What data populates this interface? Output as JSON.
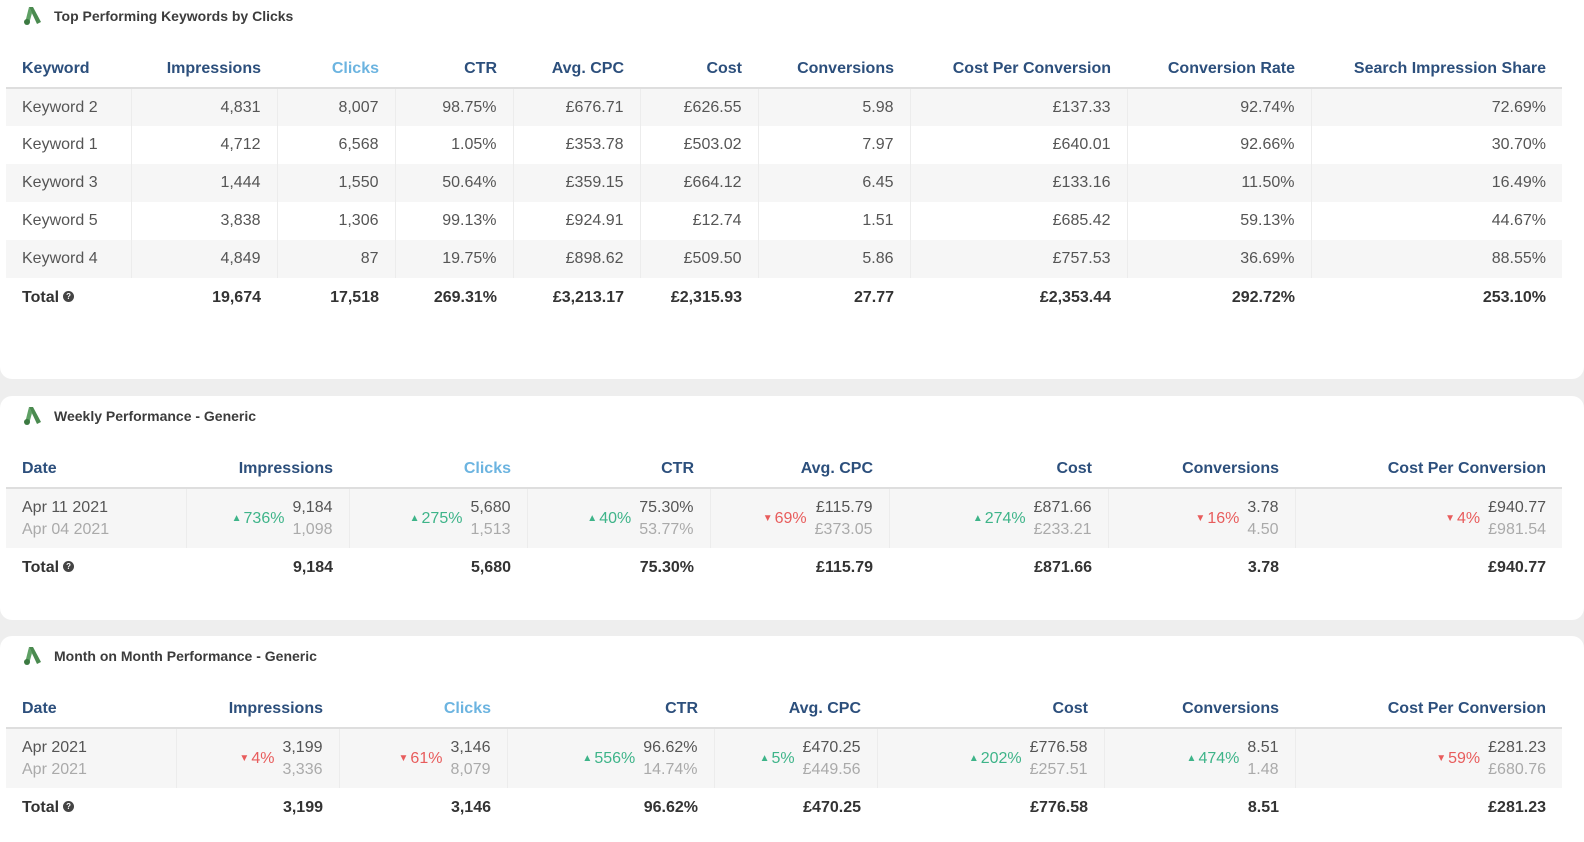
{
  "colors": {
    "header_text": "#2c4f7c",
    "sorted_header": "#6cb4e0",
    "up": "#3eb489",
    "down": "#e85c5c",
    "logo": "#4a8a4f"
  },
  "keywords": {
    "title": "Top Performing Keywords by Clicks",
    "icon": "google-ads-logo-icon",
    "headers": [
      "Keyword",
      "Impressions",
      "Clicks",
      "CTR",
      "Avg. CPC",
      "Cost",
      "Conversions",
      "Cost Per Conversion",
      "Conversion Rate",
      "Search Impression Share"
    ],
    "rows": [
      [
        "Keyword 2",
        "4,831",
        "8,007",
        "98.75%",
        "£676.71",
        "£626.55",
        "5.98",
        "£137.33",
        "92.74%",
        "72.69%"
      ],
      [
        "Keyword 1",
        "4,712",
        "6,568",
        "1.05%",
        "£353.78",
        "£503.02",
        "7.97",
        "£640.01",
        "92.66%",
        "30.70%"
      ],
      [
        "Keyword 3",
        "1,444",
        "1,550",
        "50.64%",
        "£359.15",
        "£664.12",
        "6.45",
        "£133.16",
        "11.50%",
        "16.49%"
      ],
      [
        "Keyword 5",
        "3,838",
        "1,306",
        "99.13%",
        "£924.91",
        "£12.74",
        "1.51",
        "£685.42",
        "59.13%",
        "44.67%"
      ],
      [
        "Keyword 4",
        "4,849",
        "87",
        "19.75%",
        "£898.62",
        "£509.50",
        "5.86",
        "£757.53",
        "36.69%",
        "88.55%"
      ]
    ],
    "total_label": "Total",
    "totals": [
      "19,674",
      "17,518",
      "269.31%",
      "£3,213.17",
      "£2,315.93",
      "27.77",
      "£2,353.44",
      "292.72%",
      "253.10%"
    ]
  },
  "weekly": {
    "title": "Weekly Performance - Generic",
    "headers": [
      "Date",
      "Impressions",
      "Clicks",
      "CTR",
      "Avg. CPC",
      "Cost",
      "Conversions",
      "Cost Per Conversion"
    ],
    "date_current": "Apr 11 2021",
    "date_previous": "Apr 04 2021",
    "cells": [
      {
        "delta": "736%",
        "dir": "up",
        "current": "9,184",
        "previous": "1,098"
      },
      {
        "delta": "275%",
        "dir": "up",
        "current": "5,680",
        "previous": "1,513"
      },
      {
        "delta": "40%",
        "dir": "up",
        "current": "75.30%",
        "previous": "53.77%"
      },
      {
        "delta": "69%",
        "dir": "down",
        "current": "£115.79",
        "previous": "£373.05"
      },
      {
        "delta": "274%",
        "dir": "up",
        "current": "£871.66",
        "previous": "£233.21"
      },
      {
        "delta": "16%",
        "dir": "down",
        "current": "3.78",
        "previous": "4.50"
      },
      {
        "delta": "4%",
        "dir": "down",
        "current": "£940.77",
        "previous": "£981.54"
      }
    ],
    "total_label": "Total",
    "totals": [
      "9,184",
      "5,680",
      "75.30%",
      "£115.79",
      "£871.66",
      "3.78",
      "£940.77"
    ]
  },
  "monthly": {
    "title": "Month on Month Performance - Generic",
    "headers": [
      "Date",
      "Impressions",
      "Clicks",
      "CTR",
      "Avg. CPC",
      "Cost",
      "Conversions",
      "Cost Per Conversion"
    ],
    "date_current": "Apr 2021",
    "date_previous": "Apr 2021",
    "cells": [
      {
        "delta": "4%",
        "dir": "down",
        "current": "3,199",
        "previous": "3,336"
      },
      {
        "delta": "61%",
        "dir": "down",
        "current": "3,146",
        "previous": "8,079"
      },
      {
        "delta": "556%",
        "dir": "up",
        "current": "96.62%",
        "previous": "14.74%"
      },
      {
        "delta": "5%",
        "dir": "up",
        "current": "£470.25",
        "previous": "£449.56"
      },
      {
        "delta": "202%",
        "dir": "up",
        "current": "£776.58",
        "previous": "£257.51"
      },
      {
        "delta": "474%",
        "dir": "up",
        "current": "8.51",
        "previous": "1.48"
      },
      {
        "delta": "59%",
        "dir": "down",
        "current": "£281.23",
        "previous": "£680.76"
      }
    ],
    "total_label": "Total",
    "totals": [
      "3,199",
      "3,146",
      "96.62%",
      "£470.25",
      "£776.58",
      "8.51",
      "£281.23"
    ]
  }
}
